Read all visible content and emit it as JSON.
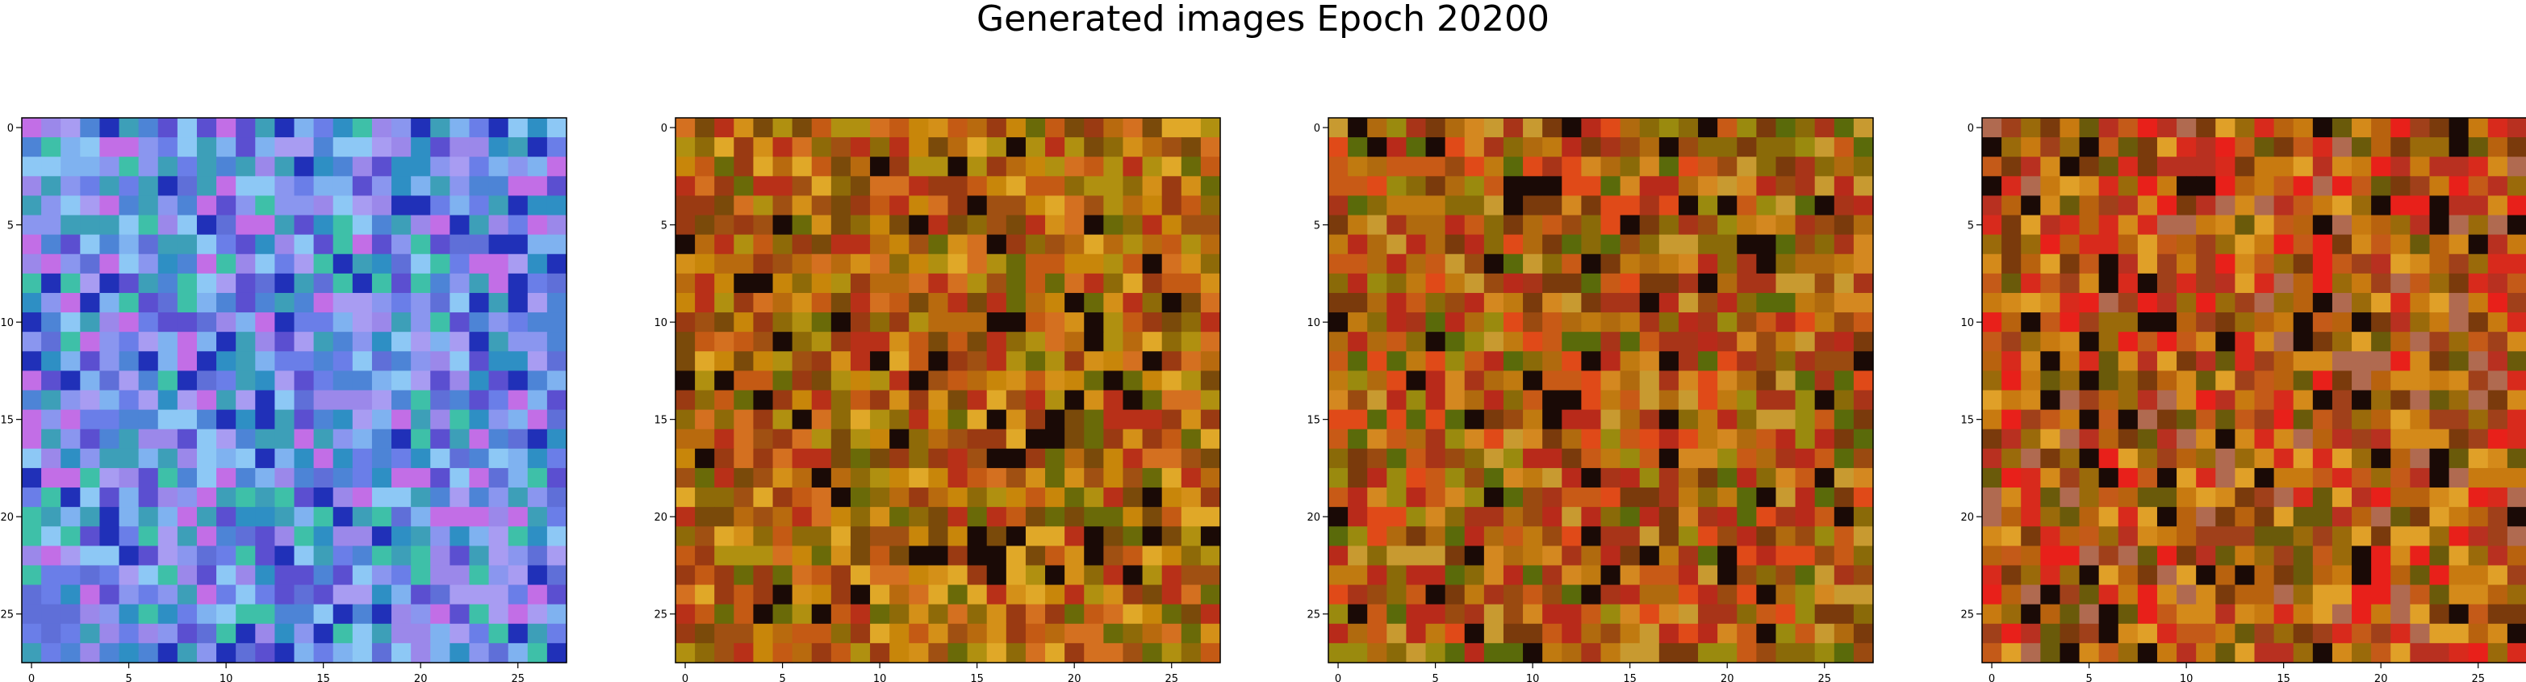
{
  "figure": {
    "title": "Generated images Epoch 20200"
  },
  "chart_data": [
    {
      "type": "heatmap",
      "title": "",
      "xlabel": "",
      "ylabel": "",
      "grid": false,
      "xlim": [
        -0.5,
        27.5
      ],
      "ylim": [
        27.5,
        -0.5
      ],
      "x_ticks": [
        "0",
        "5",
        "10",
        "15",
        "20",
        "25"
      ],
      "y_ticks": [
        "0",
        "5",
        "10",
        "15",
        "20",
        "25"
      ],
      "grid_size": [
        28,
        28
      ],
      "palette": [
        "#6a7ee8",
        "#8a96ef",
        "#5f6fd8",
        "#4d84d6",
        "#9b88ea",
        "#3d9fb8",
        "#7fb2f0",
        "#5b4fd0",
        "#2e8fc4",
        "#a89cf2",
        "#3ec0a8",
        "#c26ee6",
        "#2030b8",
        "#8dc8f5"
      ],
      "palette_name": "blue-violet"
    },
    {
      "type": "heatmap",
      "title": "",
      "xlabel": "",
      "ylabel": "",
      "grid": false,
      "xlim": [
        -0.5,
        27.5
      ],
      "ylim": [
        27.5,
        -0.5
      ],
      "x_ticks": [
        "0",
        "5",
        "10",
        "15",
        "20",
        "25"
      ],
      "y_ticks": [
        "0",
        "5",
        "10",
        "15",
        "20",
        "25"
      ],
      "grid_size": [
        28,
        28
      ],
      "palette": [
        "#b86a0e",
        "#c8860a",
        "#a05012",
        "#8e6a08",
        "#d49018",
        "#9a3a12",
        "#b09010",
        "#c45a14",
        "#7a4a0a",
        "#e0a828",
        "#6a6a08",
        "#b83018",
        "#d47020",
        "#1a0a06"
      ],
      "palette_name": "orange-brown"
    },
    {
      "type": "heatmap",
      "title": "",
      "xlabel": "",
      "ylabel": "",
      "grid": false,
      "xlim": [
        -0.5,
        27.5
      ],
      "ylim": [
        27.5,
        -0.5
      ],
      "x_ticks": [
        "0",
        "5",
        "10",
        "15",
        "20",
        "25"
      ],
      "y_ticks": [
        "0",
        "5",
        "10",
        "15",
        "20",
        "25"
      ],
      "grid_size": [
        28,
        28
      ],
      "palette": [
        "#b06a0e",
        "#c07a10",
        "#9a4a10",
        "#8a6a08",
        "#c85a16",
        "#a83418",
        "#9a8a0e",
        "#d48820",
        "#7a3a0c",
        "#e04a18",
        "#5a6a0a",
        "#b82a1a",
        "#1a0a06",
        "#c89a30"
      ],
      "palette_name": "orange-brown"
    },
    {
      "type": "heatmap",
      "title": "",
      "xlabel": "",
      "ylabel": "",
      "grid": false,
      "xlim": [
        -0.5,
        27.5
      ],
      "ylim": [
        27.5,
        -0.5
      ],
      "x_ticks": [
        "0",
        "5",
        "10",
        "15",
        "20",
        "25"
      ],
      "y_ticks": [
        "0",
        "5",
        "10",
        "15",
        "20",
        "25"
      ],
      "grid_size": [
        28,
        28
      ],
      "palette": [
        "#b8620e",
        "#c87a10",
        "#a0401a",
        "#9a6a0a",
        "#d48a1a",
        "#b83020",
        "#e8201a",
        "#c45a18",
        "#7a3a0c",
        "#e0a028",
        "#6a5a0a",
        "#d82a1c",
        "#1a0a06",
        "#b06a50"
      ],
      "palette_name": "orange-red"
    }
  ]
}
